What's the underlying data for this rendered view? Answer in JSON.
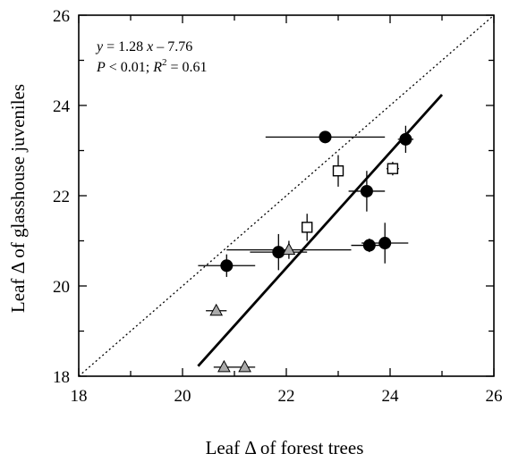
{
  "chart_data": {
    "type": "scatter",
    "xlabel": "Leaf Δ of forest trees",
    "ylabel": "Leaf Δ of glasshouse juveniles",
    "xlim": [
      18,
      26
    ],
    "ylim": [
      18,
      26
    ],
    "x_ticks": [
      "18",
      "20",
      "22",
      "24",
      "26"
    ],
    "y_ticks": [
      "18",
      "20",
      "22",
      "24",
      "26"
    ],
    "grid": false,
    "annotation": {
      "line1": {
        "y": "y",
        "eq": " = 1.28 ",
        "x": "x",
        "rest": " – 7.76"
      },
      "line2": {
        "p": "P",
        "plt": " < 0.01; ",
        "r": "R",
        "sup": "2",
        "rval": " = 0.61"
      }
    },
    "regression": {
      "slope": 1.28,
      "intercept": -7.76,
      "x_range": [
        20.3,
        25.0
      ]
    },
    "reference_line": {
      "style": "dotted",
      "from": [
        18,
        18
      ],
      "to": [
        26,
        26
      ]
    },
    "series": [
      {
        "marker": "filled-circle",
        "color": "#000000",
        "points": [
          {
            "x": 20.85,
            "y": 20.45,
            "xerr": 0.55,
            "yerr": 0.25
          },
          {
            "x": 21.85,
            "y": 20.75,
            "xerr": 0.55,
            "yerr": 0.4
          },
          {
            "x": 22.75,
            "y": 23.3,
            "xerr": 1.15,
            "yerr": 0.1
          },
          {
            "x": 23.55,
            "y": 22.1,
            "xerr": 0.35,
            "yerr": 0.45
          },
          {
            "x": 23.6,
            "y": 20.9,
            "xerr": 0.35,
            "yerr": 0.15
          },
          {
            "x": 23.9,
            "y": 20.95,
            "xerr": 0.45,
            "yerr": 0.45
          },
          {
            "x": 24.3,
            "y": 23.25,
            "xerr": 0.15,
            "yerr": 0.3
          }
        ]
      },
      {
        "marker": "open-square",
        "color": "#000000",
        "points": [
          {
            "x": 22.4,
            "y": 21.3,
            "xerr": 0.1,
            "yerr": 0.3
          },
          {
            "x": 23.0,
            "y": 22.55,
            "xerr": 0.1,
            "yerr": 0.35
          },
          {
            "x": 24.05,
            "y": 22.6,
            "xerr": 0.12,
            "yerr": 0.15
          }
        ]
      },
      {
        "marker": "grey-triangle",
        "color": "#aaaaaa",
        "points": [
          {
            "x": 20.65,
            "y": 19.45,
            "xerr": 0.2,
            "yerr": 0.1
          },
          {
            "x": 20.8,
            "y": 18.2,
            "xerr": 0.2,
            "yerr": 0.1
          },
          {
            "x": 21.2,
            "y": 18.2,
            "xerr": 0.2,
            "yerr": 0.1
          },
          {
            "x": 22.05,
            "y": 20.8,
            "xerr": 1.2,
            "yerr": 0.2
          }
        ]
      }
    ]
  }
}
